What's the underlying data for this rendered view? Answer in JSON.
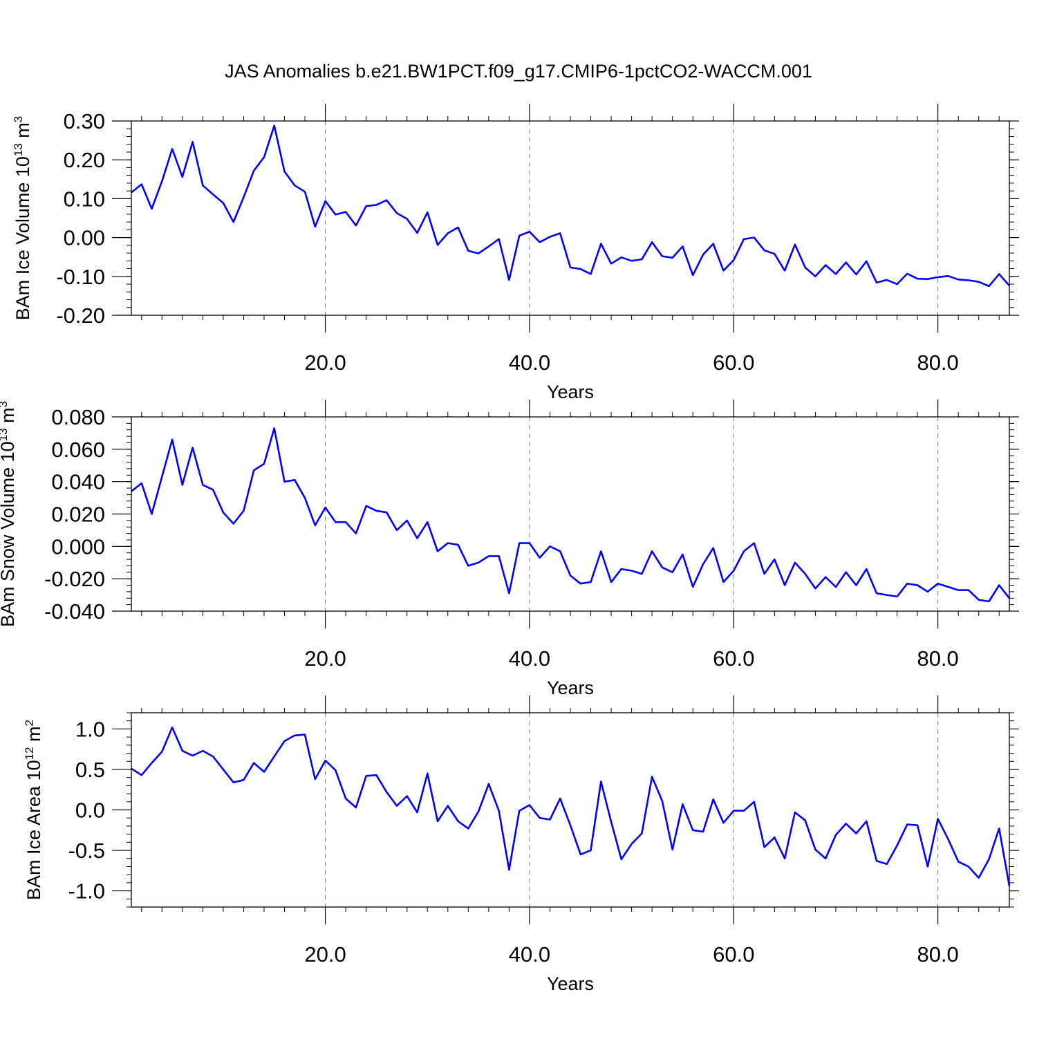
{
  "title": "JAS Anomalies b.e21.BW1PCT.f09_g17.CMIP6-1pctCO2-WACCM.001",
  "colors": {
    "line": "#0000ff",
    "axis": "#000000",
    "grid": "#777777"
  },
  "chart_data": [
    {
      "type": "line",
      "ylabel": {
        "text": "BAm Ice Volume 10",
        "sup": "13",
        "unit": " m",
        "unit_sup": "3"
      },
      "xlabel": "Years",
      "xlim": [
        1,
        87
      ],
      "ylim": [
        -0.2,
        0.3
      ],
      "yticks": [
        -0.2,
        -0.1,
        0.0,
        0.1,
        0.2,
        0.3
      ],
      "ytick_labels": [
        "-0.20",
        "-0.10",
        "0.00",
        "0.10",
        "0.20",
        "0.30"
      ],
      "xticks": [
        20,
        40,
        60,
        80
      ],
      "xtick_labels": [
        "20.0",
        "40.0",
        "60.0",
        "80.0"
      ],
      "grid": "x-dashed",
      "series": [
        {
          "values": [
            0.116,
            0.137,
            0.074,
            0.145,
            0.228,
            0.156,
            0.246,
            0.134,
            0.111,
            0.089,
            0.04,
            0.104,
            0.172,
            0.207,
            0.288,
            0.17,
            0.134,
            0.118,
            0.028,
            0.094,
            0.059,
            0.066,
            0.031,
            0.081,
            0.084,
            0.096,
            0.063,
            0.048,
            0.012,
            0.065,
            -0.019,
            0.011,
            0.026,
            -0.034,
            -0.041,
            -0.023,
            -0.004,
            -0.109,
            0.005,
            0.015,
            -0.012,
            0.002,
            0.011,
            -0.077,
            -0.081,
            -0.094,
            -0.016,
            -0.067,
            -0.051,
            -0.06,
            -0.056,
            -0.012,
            -0.048,
            -0.052,
            -0.023,
            -0.097,
            -0.044,
            -0.016,
            -0.085,
            -0.058,
            -0.004,
            0.0,
            -0.033,
            -0.042,
            -0.085,
            -0.018,
            -0.077,
            -0.1,
            -0.071,
            -0.094,
            -0.064,
            -0.095,
            -0.061,
            -0.116,
            -0.109,
            -0.12,
            -0.093,
            -0.106,
            -0.107,
            -0.102,
            -0.099,
            -0.108,
            -0.11,
            -0.114,
            -0.125,
            -0.094,
            -0.124
          ]
        }
      ]
    },
    {
      "type": "line",
      "ylabel": {
        "text": "BAm Snow Volume 10",
        "sup": "13",
        "unit": " m",
        "unit_sup": "3"
      },
      "xlabel": "Years",
      "xlim": [
        1,
        87
      ],
      "ylim": [
        -0.04,
        0.08
      ],
      "yticks": [
        -0.04,
        -0.02,
        0.0,
        0.02,
        0.04,
        0.06,
        0.08
      ],
      "ytick_labels": [
        "-0.040",
        "-0.020",
        "0.000",
        "0.020",
        "0.040",
        "0.060",
        "0.080"
      ],
      "xticks": [
        20,
        40,
        60,
        80
      ],
      "xtick_labels": [
        "20.0",
        "40.0",
        "60.0",
        "80.0"
      ],
      "grid": "x-dashed",
      "series": [
        {
          "values": [
            0.034,
            0.039,
            0.02,
            0.043,
            0.066,
            0.038,
            0.061,
            0.038,
            0.035,
            0.021,
            0.014,
            0.022,
            0.047,
            0.051,
            0.073,
            0.04,
            0.041,
            0.03,
            0.013,
            0.024,
            0.015,
            0.015,
            0.008,
            0.025,
            0.022,
            0.021,
            0.01,
            0.016,
            0.005,
            0.015,
            -0.003,
            0.002,
            0.001,
            -0.012,
            -0.01,
            -0.006,
            -0.006,
            -0.029,
            0.002,
            0.002,
            -0.007,
            0.0,
            -0.003,
            -0.018,
            -0.023,
            -0.022,
            -0.003,
            -0.022,
            -0.014,
            -0.015,
            -0.017,
            -0.003,
            -0.013,
            -0.016,
            -0.005,
            -0.025,
            -0.011,
            -0.001,
            -0.022,
            -0.015,
            -0.003,
            0.002,
            -0.017,
            -0.008,
            -0.024,
            -0.01,
            -0.017,
            -0.026,
            -0.019,
            -0.025,
            -0.016,
            -0.024,
            -0.014,
            -0.029,
            -0.03,
            -0.031,
            -0.023,
            -0.024,
            -0.028,
            -0.023,
            -0.025,
            -0.027,
            -0.027,
            -0.033,
            -0.034,
            -0.024,
            -0.032
          ]
        }
      ]
    },
    {
      "type": "line",
      "ylabel": {
        "text": "BAm Ice Area 10",
        "sup": "12",
        "unit": " m",
        "unit_sup": "2"
      },
      "xlabel": "Years",
      "xlim": [
        1,
        87
      ],
      "ylim": [
        -1.2,
        1.2
      ],
      "yticks": [
        -1.0,
        -0.5,
        0.0,
        0.5,
        1.0
      ],
      "ytick_labels": [
        "-1.0",
        "-0.5",
        "0.0",
        "0.5",
        "1.0"
      ],
      "xticks": [
        20,
        40,
        60,
        80
      ],
      "xtick_labels": [
        "20.0",
        "40.0",
        "60.0",
        "80.0"
      ],
      "grid": "x-dashed",
      "series": [
        {
          "values": [
            0.51,
            0.43,
            0.58,
            0.72,
            1.02,
            0.73,
            0.67,
            0.73,
            0.66,
            0.5,
            0.34,
            0.37,
            0.58,
            0.47,
            0.66,
            0.85,
            0.92,
            0.93,
            0.38,
            0.61,
            0.49,
            0.14,
            0.03,
            0.42,
            0.43,
            0.22,
            0.05,
            0.17,
            -0.03,
            0.45,
            -0.14,
            0.05,
            -0.14,
            -0.23,
            -0.02,
            0.32,
            -0.01,
            -0.74,
            -0.01,
            0.06,
            -0.1,
            -0.12,
            0.14,
            -0.19,
            -0.55,
            -0.5,
            0.35,
            -0.15,
            -0.61,
            -0.42,
            -0.29,
            0.41,
            0.11,
            -0.49,
            0.07,
            -0.25,
            -0.27,
            0.13,
            -0.16,
            -0.01,
            -0.01,
            0.1,
            -0.46,
            -0.34,
            -0.6,
            -0.03,
            -0.13,
            -0.49,
            -0.6,
            -0.31,
            -0.17,
            -0.29,
            -0.14,
            -0.63,
            -0.67,
            -0.44,
            -0.18,
            -0.19,
            -0.7,
            -0.11,
            -0.36,
            -0.64,
            -0.7,
            -0.84,
            -0.61,
            -0.23,
            -0.94
          ]
        }
      ]
    }
  ]
}
